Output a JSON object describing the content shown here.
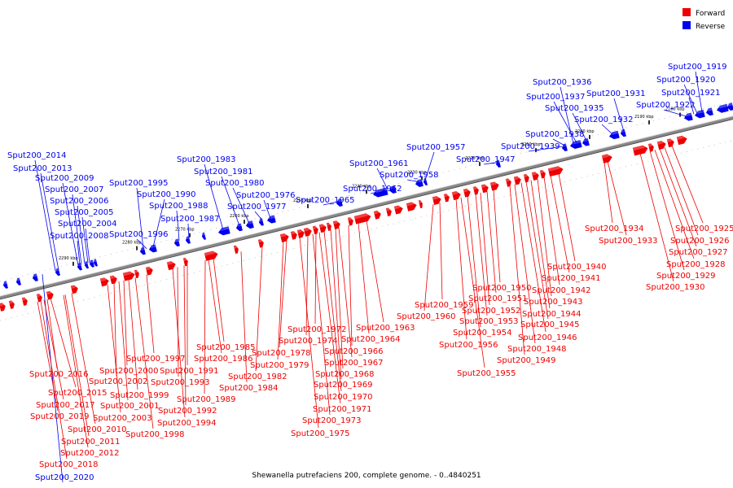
{
  "caption": "Shewanella putrefaciens 200, complete genome. - 0..4840251",
  "legend": [
    {
      "label": "Forward",
      "color": "#ee0000"
    },
    {
      "label": "Reverse",
      "color": "#0000ee"
    }
  ],
  "colors": {
    "forward": "#ee0000",
    "reverse": "#0000ee"
  },
  "ticks": [
    "2180 kbp",
    "2190 kbp",
    "2200 kbp",
    "2210 kbp",
    "2220 kbp",
    "2230 kbp",
    "2240 kbp",
    "2250 kbp",
    "2260 kbp",
    "2270 kbp",
    "2280 kbp",
    "2290 kbp"
  ],
  "reverse_genes": [
    "Sput200_1919",
    "Sput200_1920",
    "Sput200_1921",
    "Sput200_1922",
    "Sput200_1931",
    "Sput200_1932",
    "Sput200_1935",
    "Sput200_1936",
    "Sput200_1937",
    "Sput200_1938",
    "Sput200_1939",
    "Sput200_1947",
    "Sput200_1957",
    "Sput200_1958",
    "Sput200_1961",
    "Sput200_1962",
    "Sput200_1965",
    "Sput200_1976",
    "Sput200_1977",
    "Sput200_1980",
    "Sput200_1981",
    "Sput200_1983",
    "Sput200_1987",
    "Sput200_1988",
    "Sput200_1990",
    "Sput200_1995",
    "Sput200_1996",
    "Sput200_2004",
    "Sput200_2005",
    "Sput200_2006",
    "Sput200_2007",
    "Sput200_2008",
    "Sput200_2009",
    "Sput200_2013",
    "Sput200_2014",
    "Sput200_2020"
  ],
  "forward_genes": [
    "Sput200_1925",
    "Sput200_1926",
    "Sput200_1927",
    "Sput200_1928",
    "Sput200_1929",
    "Sput200_1930",
    "Sput200_1933",
    "Sput200_1934",
    "Sput200_1940",
    "Sput200_1941",
    "Sput200_1942",
    "Sput200_1943",
    "Sput200_1944",
    "Sput200_1945",
    "Sput200_1946",
    "Sput200_1948",
    "Sput200_1949",
    "Sput200_1950",
    "Sput200_1951",
    "Sput200_1952",
    "Sput200_1953",
    "Sput200_1954",
    "Sput200_1955",
    "Sput200_1956",
    "Sput200_1959",
    "Sput200_1960",
    "Sput200_1963",
    "Sput200_1964",
    "Sput200_1966",
    "Sput200_1967",
    "Sput200_1968",
    "Sput200_1969",
    "Sput200_1970",
    "Sput200_1971",
    "Sput200_1972",
    "Sput200_1973",
    "Sput200_1974",
    "Sput200_1975",
    "Sput200_1978",
    "Sput200_1979",
    "Sput200_1982",
    "Sput200_1984",
    "Sput200_1985",
    "Sput200_1986",
    "Sput200_1989",
    "Sput200_1991",
    "Sput200_1992",
    "Sput200_1993",
    "Sput200_1994",
    "Sput200_1997",
    "Sput200_1998",
    "Sput200_1999",
    "Sput200_2000",
    "Sput200_2001",
    "Sput200_2002",
    "Sput200_2003",
    "Sput200_2010",
    "Sput200_2011",
    "Sput200_2012",
    "Sput200_2015",
    "Sput200_2016",
    "Sput200_2017",
    "Sput200_2018",
    "Sput200_2019"
  ]
}
